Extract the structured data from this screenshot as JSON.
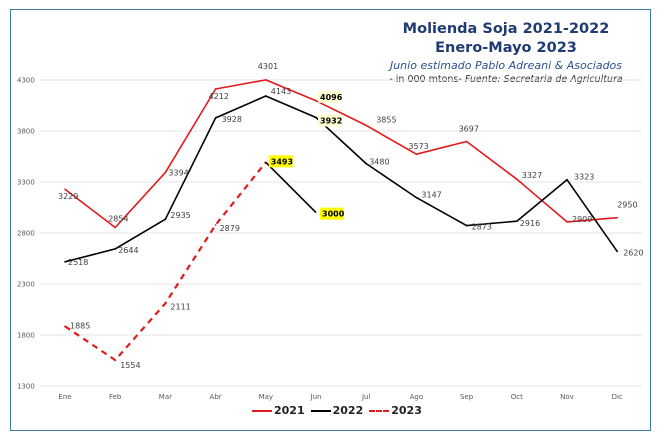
{
  "chart_data": {
    "type": "line",
    "title": "Molienda Soja 2021-2022",
    "title_line2": "Enero-Mayo 2023",
    "subtitle": "Junio estimado Pablo Adreani & Asociados",
    "source_prefix": "- in  000 mtons- ",
    "source_italic": "Fuente: Secretaria de Agricultura",
    "xlabel": "",
    "ylabel": "",
    "categories": [
      "Ene",
      "Feb",
      "Mar",
      "Abr",
      "May",
      "Jun",
      "Jul",
      "Ago",
      "Sep",
      "Oct",
      "Nov",
      "Dic"
    ],
    "yticks": [
      "4300",
      "3800",
      "3300",
      "2800",
      "2300",
      "1800",
      "1300"
    ],
    "ylim": [
      1300,
      4300
    ],
    "grid": true,
    "legend_position": "bottom",
    "series": [
      {
        "name": "2021",
        "color": "#e31a1c",
        "style": "solid",
        "values": [
          3229,
          2854,
          3394,
          4212,
          4301,
          4096,
          3855,
          3573,
          3697,
          3327,
          2909,
          2950
        ],
        "highlighted": [
          5
        ]
      },
      {
        "name": "2022",
        "color": "#000000",
        "style": "solid",
        "values": [
          2518,
          2644,
          2935,
          3928,
          4143,
          3932,
          3480,
          3147,
          2873,
          2916,
          3323,
          2620
        ],
        "highlighted": [
          5
        ]
      },
      {
        "name": "2023",
        "color": "#e31a1c",
        "style": "dashed",
        "values": [
          1885,
          1554,
          2111,
          2879,
          3493,
          null,
          null,
          null,
          null,
          null,
          null,
          null
        ],
        "highlighted": [
          4
        ]
      }
    ],
    "projection": {
      "name": "2023 Junio estimado",
      "color": "#000000",
      "from_index": 4,
      "to_index": 5,
      "values": [
        3493,
        3000
      ],
      "highlighted": [
        5
      ]
    },
    "highlight_colors": {
      "strong": "#ffff00",
      "light": "#fffbd0"
    }
  }
}
